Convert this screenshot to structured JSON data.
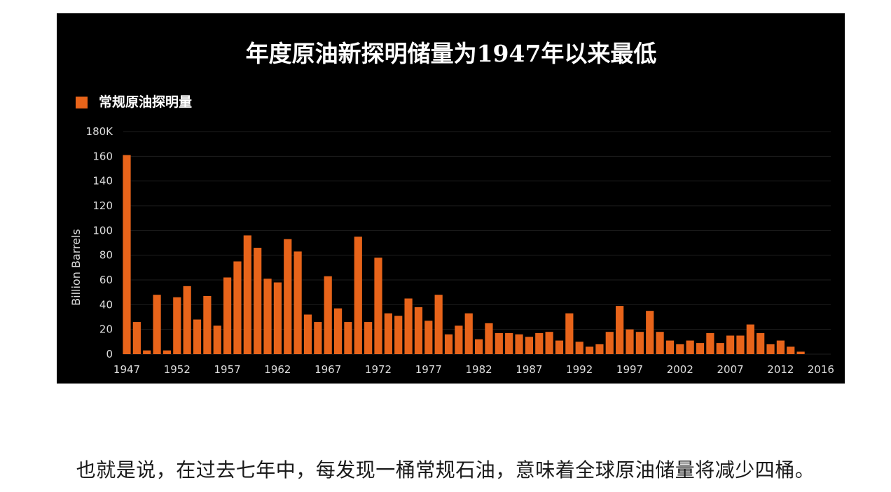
{
  "caption": "也就是说，在过去七年中，每发现一桶常规石油，意味着全球原油储量将减少四桶。",
  "colors": {
    "bar": "#e8641a",
    "background": "#000000",
    "text": "#ffffff",
    "axis_text": "#dddddd"
  },
  "chart_data": {
    "type": "bar",
    "title": "年度原油新探明储量为1947年以来最低",
    "ylabel": "Billion Barrels",
    "xlabel": "",
    "legend": {
      "position": "top-left",
      "entries": [
        "常规原油探明量"
      ]
    },
    "ylim": [
      0,
      180
    ],
    "yticks": [
      "0",
      "20",
      "40",
      "60",
      "80",
      "100",
      "120",
      "140",
      "160",
      "180K"
    ],
    "xticks": [
      "1947",
      "1952",
      "1957",
      "1962",
      "1967",
      "1972",
      "1977",
      "1982",
      "1987",
      "1992",
      "1997",
      "2002",
      "2007",
      "2012",
      "2016"
    ],
    "grid": true,
    "categories": [
      1947,
      1948,
      1949,
      1950,
      1951,
      1952,
      1953,
      1954,
      1955,
      1956,
      1957,
      1958,
      1959,
      1960,
      1961,
      1962,
      1963,
      1964,
      1965,
      1966,
      1967,
      1968,
      1969,
      1970,
      1971,
      1972,
      1973,
      1974,
      1975,
      1976,
      1977,
      1978,
      1979,
      1980,
      1981,
      1982,
      1983,
      1984,
      1985,
      1986,
      1987,
      1988,
      1989,
      1990,
      1991,
      1992,
      1993,
      1994,
      1995,
      1996,
      1997,
      1998,
      1999,
      2000,
      2001,
      2002,
      2003,
      2004,
      2005,
      2006,
      2007,
      2008,
      2009,
      2010,
      2011,
      2012,
      2013,
      2014,
      2015,
      2016
    ],
    "series": [
      {
        "name": "常规原油探明量",
        "values": [
          161,
          26,
          3,
          48,
          3,
          46,
          55,
          28,
          47,
          23,
          62,
          75,
          96,
          86,
          61,
          58,
          93,
          83,
          32,
          26,
          63,
          37,
          26,
          95,
          26,
          78,
          33,
          31,
          45,
          38,
          27,
          48,
          16,
          23,
          33,
          12,
          25,
          17,
          17,
          16,
          14,
          17,
          18,
          11,
          33,
          10,
          6,
          8,
          18,
          39,
          20,
          18,
          35,
          18,
          11,
          8,
          11,
          9,
          17,
          9,
          15,
          15,
          24,
          17,
          8,
          11,
          6,
          2,
          0,
          0
        ]
      }
    ]
  }
}
